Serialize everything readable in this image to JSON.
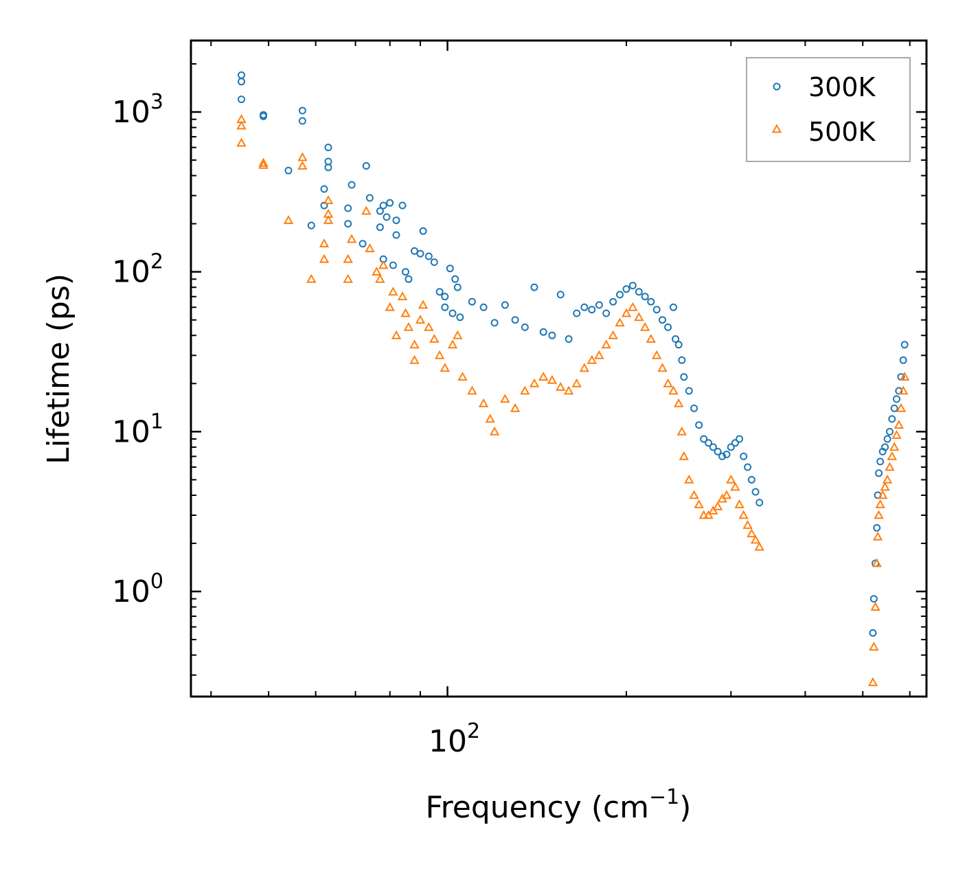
{
  "chart_data": {
    "type": "scatter",
    "title": "",
    "xlabel": {
      "text": "Frequency (cm",
      "sup": "−1",
      "suffix": ")"
    },
    "ylabel": "Lifetime (ps)",
    "xscale": "log",
    "yscale": "log",
    "xlim": [
      37,
      640
    ],
    "ylim": [
      0.22,
      2800
    ],
    "x_ticks": [
      {
        "value": 100,
        "base": "10",
        "exp": "2"
      }
    ],
    "y_ticks": [
      {
        "value": 1,
        "base": "10",
        "exp": "0"
      },
      {
        "value": 10,
        "base": "10",
        "exp": "1"
      },
      {
        "value": 100,
        "base": "10",
        "exp": "2"
      },
      {
        "value": 1000,
        "base": "10",
        "exp": "3"
      }
    ],
    "legend": {
      "position": "top-right"
    },
    "series": [
      {
        "name": "300K",
        "marker": "circle",
        "color": "#1f77b4",
        "points": [
          [
            45,
            1700
          ],
          [
            45,
            1550
          ],
          [
            45,
            1200
          ],
          [
            49,
            960
          ],
          [
            49,
            940
          ],
          [
            54,
            430
          ],
          [
            57,
            880
          ],
          [
            57,
            1020
          ],
          [
            59,
            195
          ],
          [
            63,
            600
          ],
          [
            63,
            490
          ],
          [
            63,
            450
          ],
          [
            62,
            330
          ],
          [
            62,
            260
          ],
          [
            68,
            250
          ],
          [
            68,
            200
          ],
          [
            69,
            350
          ],
          [
            73,
            460
          ],
          [
            74,
            290
          ],
          [
            72,
            150
          ],
          [
            77,
            190
          ],
          [
            77,
            240
          ],
          [
            78,
            260
          ],
          [
            80,
            270
          ],
          [
            79,
            220
          ],
          [
            82,
            170
          ],
          [
            82,
            210
          ],
          [
            84,
            260
          ],
          [
            78,
            120
          ],
          [
            81,
            110
          ],
          [
            85,
            100
          ],
          [
            86,
            90
          ],
          [
            88,
            135
          ],
          [
            90,
            130
          ],
          [
            91,
            180
          ],
          [
            93,
            125
          ],
          [
            95,
            115
          ],
          [
            97,
            75
          ],
          [
            99,
            70
          ],
          [
            101,
            105
          ],
          [
            103,
            90
          ],
          [
            104,
            80
          ],
          [
            99,
            60
          ],
          [
            102,
            55
          ],
          [
            105,
            52
          ],
          [
            110,
            65
          ],
          [
            115,
            60
          ],
          [
            120,
            48
          ],
          [
            125,
            62
          ],
          [
            130,
            50
          ],
          [
            135,
            45
          ],
          [
            140,
            80
          ],
          [
            145,
            42
          ],
          [
            150,
            40
          ],
          [
            155,
            72
          ],
          [
            160,
            38
          ],
          [
            165,
            55
          ],
          [
            170,
            60
          ],
          [
            175,
            58
          ],
          [
            180,
            62
          ],
          [
            185,
            55
          ],
          [
            190,
            65
          ],
          [
            195,
            72
          ],
          [
            200,
            78
          ],
          [
            205,
            82
          ],
          [
            210,
            75
          ],
          [
            215,
            70
          ],
          [
            220,
            65
          ],
          [
            225,
            58
          ],
          [
            230,
            50
          ],
          [
            235,
            45
          ],
          [
            240,
            60
          ],
          [
            242,
            38
          ],
          [
            245,
            35
          ],
          [
            248,
            28
          ],
          [
            250,
            22
          ],
          [
            255,
            18
          ],
          [
            260,
            14
          ],
          [
            265,
            11
          ],
          [
            270,
            9
          ],
          [
            275,
            8.5
          ],
          [
            280,
            8
          ],
          [
            285,
            7.5
          ],
          [
            290,
            7
          ],
          [
            295,
            7.2
          ],
          [
            300,
            8
          ],
          [
            305,
            8.5
          ],
          [
            310,
            9
          ],
          [
            315,
            7
          ],
          [
            320,
            6
          ],
          [
            325,
            5
          ],
          [
            330,
            4.2
          ],
          [
            335,
            3.6
          ],
          [
            520,
            0.55
          ],
          [
            522,
            0.9
          ],
          [
            525,
            1.5
          ],
          [
            528,
            2.5
          ],
          [
            530,
            4
          ],
          [
            532,
            5.5
          ],
          [
            535,
            6.5
          ],
          [
            540,
            7.5
          ],
          [
            545,
            8
          ],
          [
            550,
            9
          ],
          [
            555,
            10
          ],
          [
            560,
            12
          ],
          [
            565,
            14
          ],
          [
            570,
            16
          ],
          [
            575,
            18
          ],
          [
            580,
            22
          ],
          [
            585,
            28
          ],
          [
            588,
            35
          ]
        ]
      },
      {
        "name": "500K",
        "marker": "triangle",
        "color": "#ff7f0e",
        "points": [
          [
            45,
            900
          ],
          [
            45,
            820
          ],
          [
            45,
            640
          ],
          [
            49,
            480
          ],
          [
            49,
            465
          ],
          [
            54,
            210
          ],
          [
            57,
            520
          ],
          [
            57,
            460
          ],
          [
            59,
            90
          ],
          [
            62,
            150
          ],
          [
            62,
            120
          ],
          [
            63,
            280
          ],
          [
            63,
            230
          ],
          [
            63,
            210
          ],
          [
            68,
            120
          ],
          [
            68,
            90
          ],
          [
            69,
            160
          ],
          [
            73,
            240
          ],
          [
            74,
            140
          ],
          [
            76,
            100
          ],
          [
            77,
            90
          ],
          [
            78,
            110
          ],
          [
            80,
            60
          ],
          [
            82,
            40
          ],
          [
            81,
            75
          ],
          [
            84,
            70
          ],
          [
            85,
            55
          ],
          [
            86,
            45
          ],
          [
            88,
            35
          ],
          [
            88,
            28
          ],
          [
            90,
            50
          ],
          [
            91,
            62
          ],
          [
            93,
            45
          ],
          [
            95,
            38
          ],
          [
            97,
            30
          ],
          [
            99,
            25
          ],
          [
            102,
            35
          ],
          [
            104,
            40
          ],
          [
            106,
            22
          ],
          [
            110,
            18
          ],
          [
            115,
            15
          ],
          [
            118,
            12
          ],
          [
            120,
            10
          ],
          [
            125,
            16
          ],
          [
            130,
            14
          ],
          [
            135,
            18
          ],
          [
            140,
            20
          ],
          [
            145,
            22
          ],
          [
            150,
            21
          ],
          [
            155,
            19
          ],
          [
            160,
            18
          ],
          [
            165,
            20
          ],
          [
            170,
            25
          ],
          [
            175,
            28
          ],
          [
            180,
            30
          ],
          [
            185,
            35
          ],
          [
            190,
            40
          ],
          [
            195,
            48
          ],
          [
            200,
            55
          ],
          [
            205,
            60
          ],
          [
            210,
            52
          ],
          [
            215,
            45
          ],
          [
            220,
            38
          ],
          [
            225,
            30
          ],
          [
            230,
            25
          ],
          [
            235,
            20
          ],
          [
            240,
            18
          ],
          [
            245,
            15
          ],
          [
            248,
            10
          ],
          [
            250,
            7
          ],
          [
            255,
            5
          ],
          [
            260,
            4
          ],
          [
            265,
            3.5
          ],
          [
            270,
            3
          ],
          [
            275,
            3
          ],
          [
            280,
            3.2
          ],
          [
            285,
            3.4
          ],
          [
            290,
            3.8
          ],
          [
            295,
            4
          ],
          [
            300,
            5
          ],
          [
            305,
            4.5
          ],
          [
            310,
            3.5
          ],
          [
            315,
            3
          ],
          [
            320,
            2.6
          ],
          [
            325,
            2.3
          ],
          [
            330,
            2.1
          ],
          [
            335,
            1.9
          ],
          [
            520,
            0.27
          ],
          [
            522,
            0.45
          ],
          [
            525,
            0.8
          ],
          [
            528,
            1.5
          ],
          [
            530,
            2.2
          ],
          [
            532,
            3
          ],
          [
            535,
            3.5
          ],
          [
            540,
            4
          ],
          [
            545,
            4.5
          ],
          [
            550,
            5
          ],
          [
            555,
            6
          ],
          [
            560,
            7
          ],
          [
            565,
            8
          ],
          [
            570,
            9.5
          ],
          [
            575,
            11
          ],
          [
            580,
            14
          ],
          [
            585,
            18
          ],
          [
            588,
            22
          ]
        ]
      }
    ]
  }
}
